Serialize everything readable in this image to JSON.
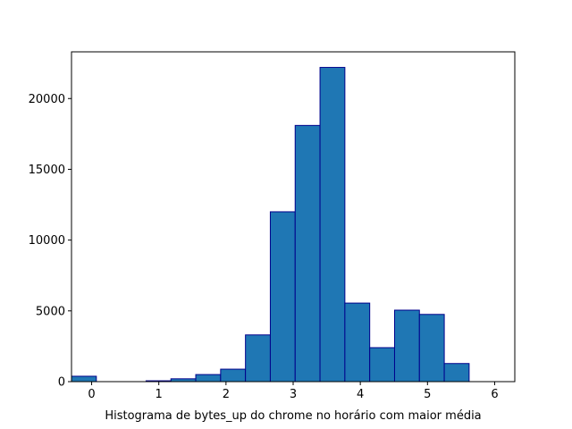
{
  "chart_data": {
    "type": "bar",
    "title": "",
    "xlabel": "Histograma de bytes_up do chrome no horário com maior média",
    "ylabel": "",
    "xlim": [
      -0.3,
      6.3
    ],
    "ylim": [
      0,
      23300
    ],
    "xticks": [
      0,
      1,
      2,
      3,
      4,
      5,
      6
    ],
    "yticks": [
      0,
      5000,
      10000,
      15000,
      20000
    ],
    "bar_color": "#1f77b4",
    "edge_color": "#00008b",
    "bins": [
      {
        "x0": -0.3,
        "x1": 0.07,
        "value": 380
      },
      {
        "x0": 0.07,
        "x1": 0.44,
        "value": 0
      },
      {
        "x0": 0.44,
        "x1": 0.81,
        "value": 0
      },
      {
        "x0": 0.81,
        "x1": 1.18,
        "value": 60
      },
      {
        "x0": 1.18,
        "x1": 1.55,
        "value": 200
      },
      {
        "x0": 1.55,
        "x1": 1.92,
        "value": 500
      },
      {
        "x0": 1.92,
        "x1": 2.29,
        "value": 880
      },
      {
        "x0": 2.29,
        "x1": 2.66,
        "value": 3300
      },
      {
        "x0": 2.66,
        "x1": 3.03,
        "value": 12000
      },
      {
        "x0": 3.03,
        "x1": 3.4,
        "value": 18100
      },
      {
        "x0": 3.4,
        "x1": 3.77,
        "value": 22200
      },
      {
        "x0": 3.77,
        "x1": 4.14,
        "value": 5550
      },
      {
        "x0": 4.14,
        "x1": 4.51,
        "value": 2400
      },
      {
        "x0": 4.51,
        "x1": 4.88,
        "value": 5050
      },
      {
        "x0": 4.88,
        "x1": 5.25,
        "value": 4750
      },
      {
        "x0": 5.25,
        "x1": 5.62,
        "value": 1280
      }
    ]
  }
}
